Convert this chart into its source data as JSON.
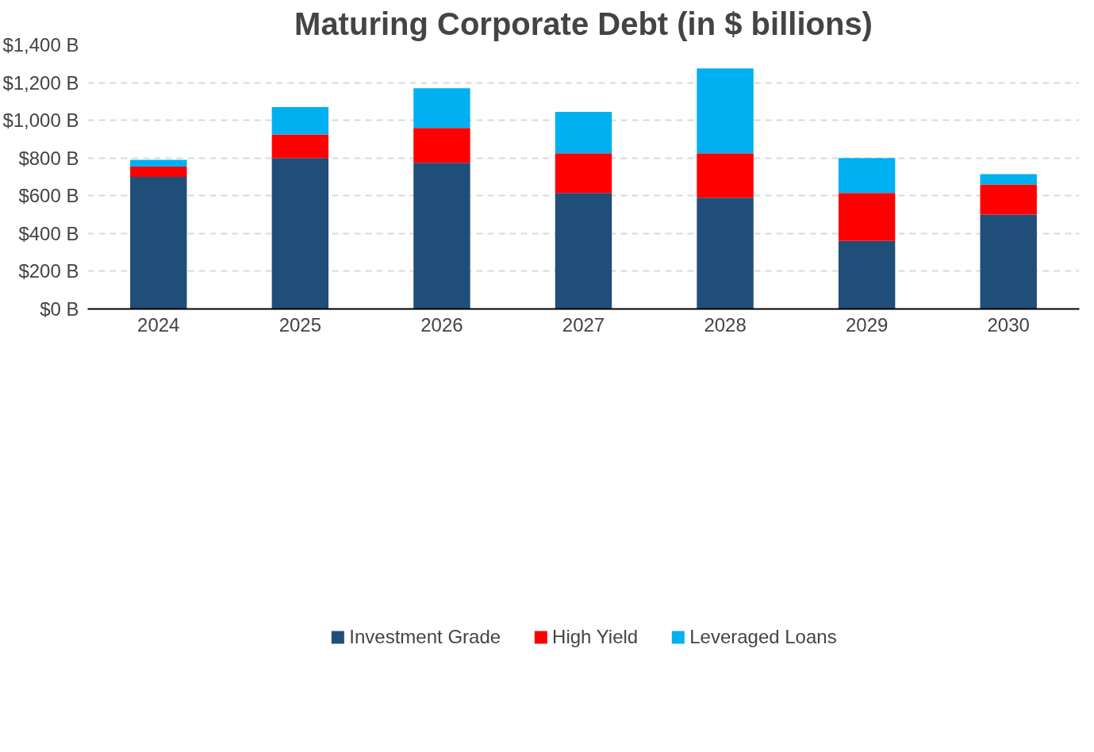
{
  "chart_data": {
    "type": "bar",
    "title": "Maturing Corporate Debt (in $ billions)",
    "stacked": true,
    "categories": [
      "2024",
      "2025",
      "2026",
      "2027",
      "2028",
      "2029",
      "2030"
    ],
    "series": [
      {
        "name": "Investment Grade",
        "color": "#1f4e79",
        "values": [
          700,
          800,
          775,
          615,
          590,
          360,
          500
        ]
      },
      {
        "name": "High Yield",
        "color": "#ff0000",
        "values": [
          55,
          125,
          185,
          210,
          235,
          255,
          160
        ]
      },
      {
        "name": "Leveraged Loans",
        "color": "#00b0f0",
        "values": [
          35,
          145,
          210,
          220,
          450,
          185,
          55
        ]
      }
    ],
    "ylim": [
      0,
      1400
    ],
    "yticks": [
      {
        "value": 0,
        "label": "$0 B"
      },
      {
        "value": 200,
        "label": "$200 B"
      },
      {
        "value": 400,
        "label": "$400 B"
      },
      {
        "value": 600,
        "label": "$600 B"
      },
      {
        "value": 800,
        "label": "$800 B"
      },
      {
        "value": 1000,
        "label": "$1,000 B"
      },
      {
        "value": 1200,
        "label": "$1,200 B"
      },
      {
        "value": 1400,
        "label": "$1,400 B"
      }
    ],
    "grid": "y",
    "legend": "bottom"
  }
}
